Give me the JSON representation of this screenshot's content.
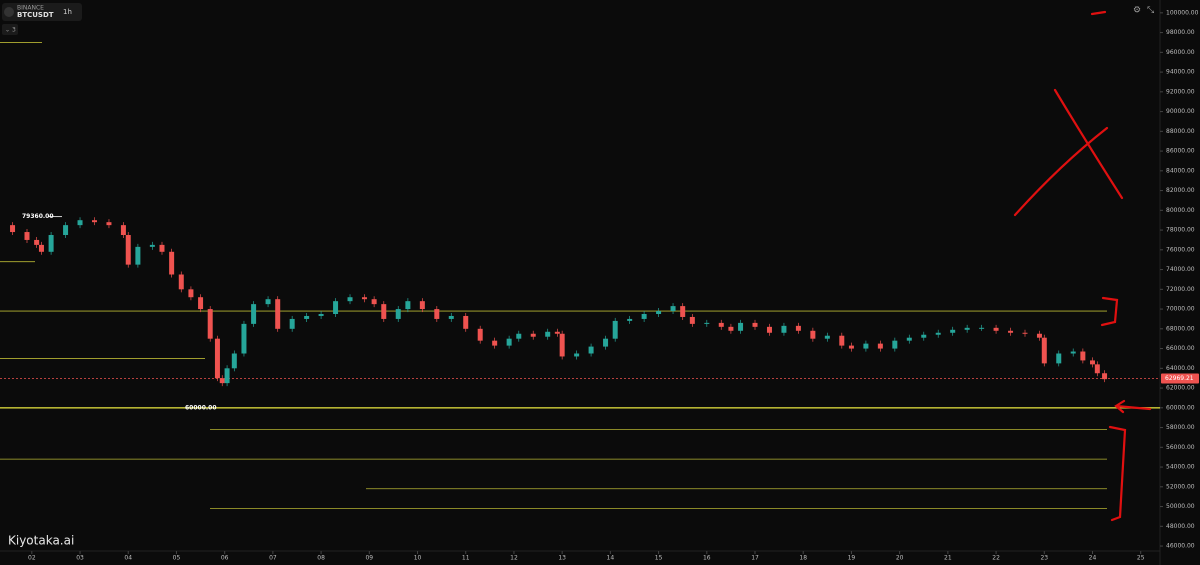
{
  "chart_data": {
    "type": "candlestick",
    "exchange": "BINANCE",
    "symbol": "BTCUSDT",
    "interval": "1h",
    "indicator_count": 3,
    "watermark": "Kiyotaka.ai",
    "up_color": "#26a69a",
    "down_color": "#ef5350",
    "level_color": "#d4d23a",
    "x": [
      1.34,
      1.6,
      1.9,
      2.1,
      2.2,
      2.4,
      2.7,
      3.0,
      3.3,
      3.6,
      3.9,
      4.0,
      4.2,
      4.5,
      4.7,
      4.9,
      5.1,
      5.3,
      5.5,
      5.7,
      5.85,
      5.95,
      6.05,
      6.2,
      6.4,
      6.6,
      6.9,
      7.1,
      7.4,
      7.7,
      8.0,
      8.3,
      8.6,
      8.9,
      9.1,
      9.3,
      9.6,
      9.8,
      10.1,
      10.4,
      10.7,
      11.0,
      11.3,
      11.6,
      11.9,
      12.1,
      12.4,
      12.7,
      12.9,
      13.0,
      13.3,
      13.6,
      13.9,
      14.1,
      14.4,
      14.7,
      15.0,
      15.3,
      15.5,
      15.7,
      16.0,
      16.3,
      16.5,
      16.7,
      17.0,
      17.3,
      17.6,
      17.9,
      18.2,
      18.5,
      18.8,
      19.0,
      19.3,
      19.6,
      19.9,
      20.2,
      20.5,
      20.8,
      21.1,
      21.4,
      21.7,
      22.0,
      22.3,
      22.6,
      22.9,
      23.0,
      23.3,
      23.6,
      23.8,
      24.0,
      24.1,
      24.25
    ],
    "values": [
      78500,
      77800,
      77000,
      76500,
      75800,
      77500,
      78500,
      79000,
      78800,
      78500,
      77500,
      74500,
      76300,
      76500,
      75800,
      73500,
      72000,
      71200,
      70000,
      67000,
      63000,
      62500,
      64000,
      65500,
      68500,
      70500,
      71000,
      68000,
      69000,
      69300,
      69500,
      70800,
      71200,
      71000,
      70500,
      69000,
      70000,
      70800,
      70000,
      69000,
      69300,
      68000,
      66800,
      66300,
      67000,
      67500,
      67200,
      67700,
      67500,
      65200,
      65500,
      66200,
      67000,
      68800,
      69000,
      69500,
      69800,
      70300,
      69200,
      68500,
      68600,
      68200,
      67800,
      68600,
      68200,
      67600,
      68300,
      67800,
      67000,
      67300,
      66300,
      66000,
      66500,
      66000,
      66800,
      67100,
      67400,
      67600,
      67900,
      68100,
      68100,
      67800,
      67600,
      67500,
      67100,
      64500,
      65500,
      65700,
      64800,
      64400,
      63500,
      62900
    ],
    "levels": [
      97000,
      74800,
      69800,
      65000,
      60000,
      57800,
      54800,
      51800,
      49800
    ],
    "current_price": 62969.21,
    "annotations": [
      {
        "value": 79360,
        "label": "79360.00"
      },
      {
        "value": 60000,
        "label": "60000.00"
      }
    ],
    "xlim": [
      1.34,
      25.4
    ],
    "xticks": [
      {
        "value": 2,
        "label": "02"
      },
      {
        "value": 3,
        "label": "03"
      },
      {
        "value": 4,
        "label": "04"
      },
      {
        "value": 5,
        "label": "05"
      },
      {
        "value": 6,
        "label": "06"
      },
      {
        "value": 7,
        "label": "07"
      },
      {
        "value": 8,
        "label": "08"
      },
      {
        "value": 9,
        "label": "09"
      },
      10,
      11,
      12,
      13,
      14,
      15,
      16,
      17,
      18,
      19,
      20,
      21,
      22,
      23,
      24,
      25
    ],
    "ylim": [
      45600,
      101300
    ],
    "yticks": [
      {
        "value": 46000,
        "label": "46000.00"
      },
      {
        "value": 48000,
        "label": "48000.00"
      },
      {
        "value": 50000,
        "label": "50000.00"
      },
      {
        "value": 52000,
        "label": "52000.00"
      },
      {
        "value": 54000,
        "label": "54000.00"
      },
      {
        "value": 56000,
        "label": "56000.00"
      },
      {
        "value": 58000,
        "label": "58000.00"
      },
      {
        "value": 60000,
        "label": "60000.00"
      },
      {
        "value": 62000,
        "label": "62000.00"
      },
      {
        "value": 64000,
        "label": "64000.00"
      },
      {
        "value": 66000,
        "label": "66000.00"
      },
      {
        "value": 68000,
        "label": "68000.00"
      },
      {
        "value": 70000,
        "label": "70000.00"
      },
      {
        "value": 72000,
        "label": "72000.00"
      },
      {
        "value": 74000,
        "label": "74000.00"
      },
      {
        "value": 76000,
        "label": "76000.00"
      },
      {
        "value": 78000,
        "label": "78000.00"
      },
      {
        "value": 80000,
        "label": "80000.00"
      },
      {
        "value": 82000,
        "label": "82000.00"
      },
      {
        "value": 84000,
        "label": "84000.00"
      },
      {
        "value": 86000,
        "label": "86000.00"
      },
      {
        "value": 88000,
        "label": "88000.00"
      },
      {
        "value": 90000,
        "label": "90000.00"
      },
      {
        "value": 92000,
        "label": "92000.00"
      },
      {
        "value": 94000,
        "label": "94000.00"
      },
      {
        "value": 96000,
        "label": "96000.00"
      },
      {
        "value": 98000,
        "label": "98000.00"
      },
      {
        "value": 100000,
        "label": "100000.00"
      }
    ]
  }
}
